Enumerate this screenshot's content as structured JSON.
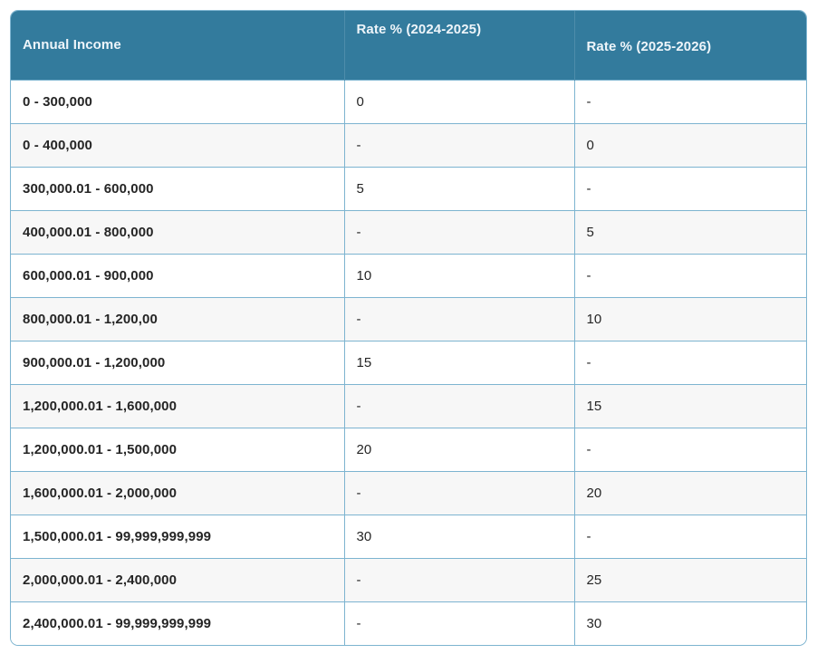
{
  "chart_data": {
    "type": "table",
    "title": "",
    "columns": [
      "Annual Income",
      "Rate % (2024-2025)",
      "Rate % (2025-2026)"
    ],
    "rows": [
      [
        "0 - 300,000",
        "0",
        "-"
      ],
      [
        "0 - 400,000",
        "-",
        "0"
      ],
      [
        "300,000.01 - 600,000",
        "5",
        "-"
      ],
      [
        "400,000.01 - 800,000",
        "-",
        "5"
      ],
      [
        "600,000.01 - 900,000",
        "10",
        "-"
      ],
      [
        "800,000.01 - 1,200,00",
        "-",
        "10"
      ],
      [
        "900,000.01 - 1,200,000",
        "15",
        "-"
      ],
      [
        "1,200,000.01 - 1,600,000",
        "-",
        "15"
      ],
      [
        "1,200,000.01 - 1,500,000",
        "20",
        "-"
      ],
      [
        "1,600,000.01 - 2,000,000",
        "-",
        "20"
      ],
      [
        "1,500,000.01 - 99,999,999,999",
        "30",
        "-"
      ],
      [
        "2,000,000.01 - 2,400,000",
        "-",
        "25"
      ],
      [
        "2,400,000.01 - 99,999,999,999",
        "-",
        "30"
      ]
    ]
  },
  "colors": {
    "header_bg": "#337b9d",
    "header_text": "#eef5fa",
    "header_divider": "#4e8cab",
    "grid_border": "#7db4d0",
    "row_alt_bg": "#f7f7f7",
    "row_text": "#252525"
  }
}
